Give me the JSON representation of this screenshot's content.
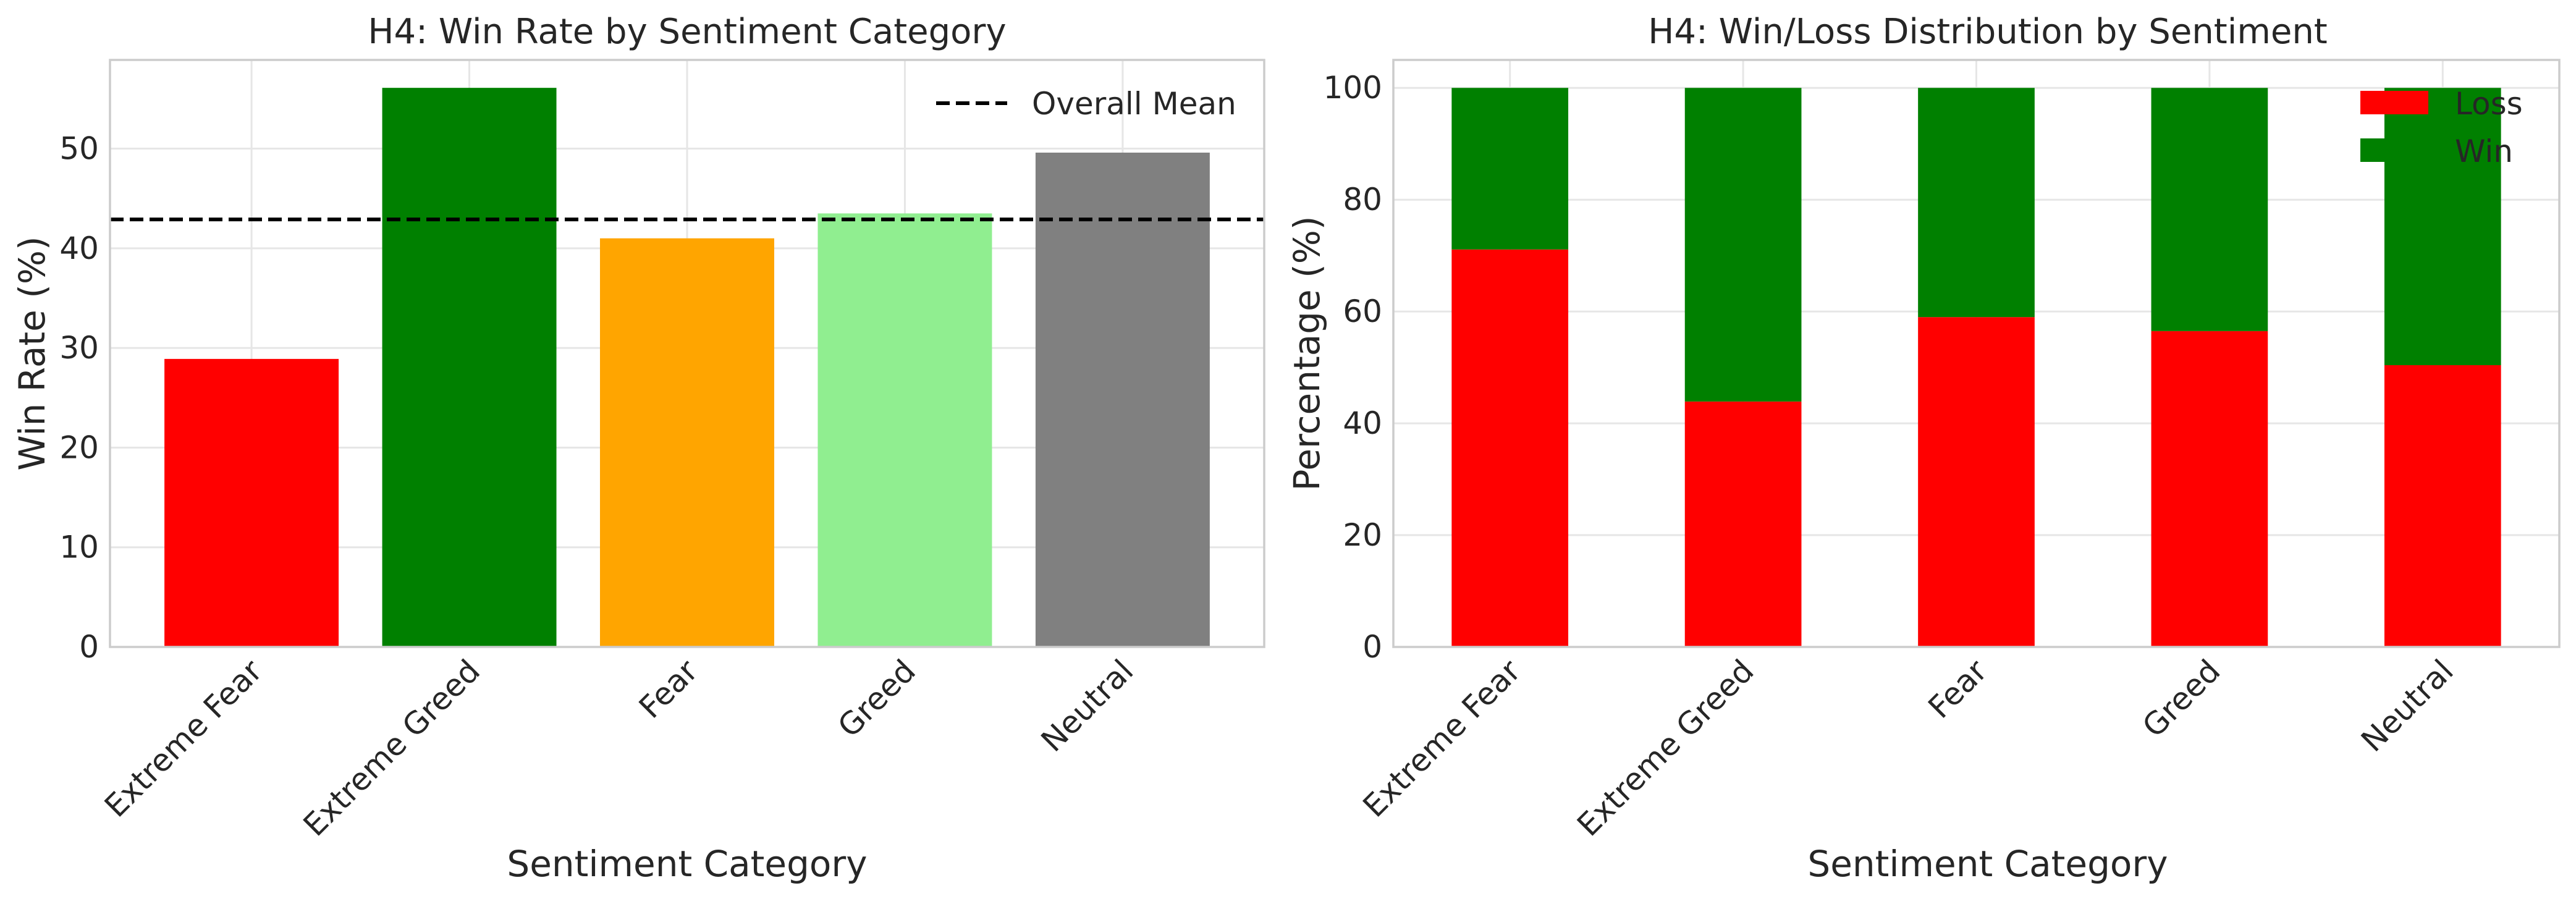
{
  "chart_data": [
    {
      "type": "bar",
      "title": "H4: Win Rate by Sentiment Category",
      "xlabel": "Sentiment Category",
      "ylabel": "Win Rate (%)",
      "categories": [
        "Extreme Fear",
        "Extreme Greed",
        "Fear",
        "Greed",
        "Neutral"
      ],
      "values": [
        28.9,
        56.1,
        41.0,
        43.5,
        49.6
      ],
      "colors": [
        "#ff0000",
        "#008000",
        "#ffa500",
        "#90ee90",
        "#808080"
      ],
      "ylim": [
        0,
        58.9
      ],
      "yticks": [
        0,
        10,
        20,
        30,
        40,
        50
      ],
      "reference_line": {
        "label": "Overall Mean",
        "value": 42.9,
        "style": "dashed",
        "color": "#000000"
      },
      "legend": {
        "position": "top-right",
        "entries": [
          "Overall Mean"
        ]
      },
      "grid": true
    },
    {
      "type": "bar",
      "stacked": true,
      "title": "H4: Win/Loss Distribution by Sentiment",
      "xlabel": "Sentiment Category",
      "ylabel": "Percentage (%)",
      "categories": [
        "Extreme Fear",
        "Extreme Greed",
        "Fear",
        "Greed",
        "Neutral"
      ],
      "series": [
        {
          "name": "Loss",
          "color": "#ff0000",
          "values": [
            71.1,
            43.9,
            59.0,
            56.5,
            50.4
          ]
        },
        {
          "name": "Win",
          "color": "#008000",
          "values": [
            28.9,
            56.1,
            41.0,
            43.5,
            49.6
          ]
        }
      ],
      "ylim": [
        0,
        105
      ],
      "yticks": [
        0,
        20,
        40,
        60,
        80,
        100
      ],
      "legend": {
        "position": "top-right",
        "entries": [
          "Loss",
          "Win"
        ]
      },
      "grid": true
    }
  ]
}
